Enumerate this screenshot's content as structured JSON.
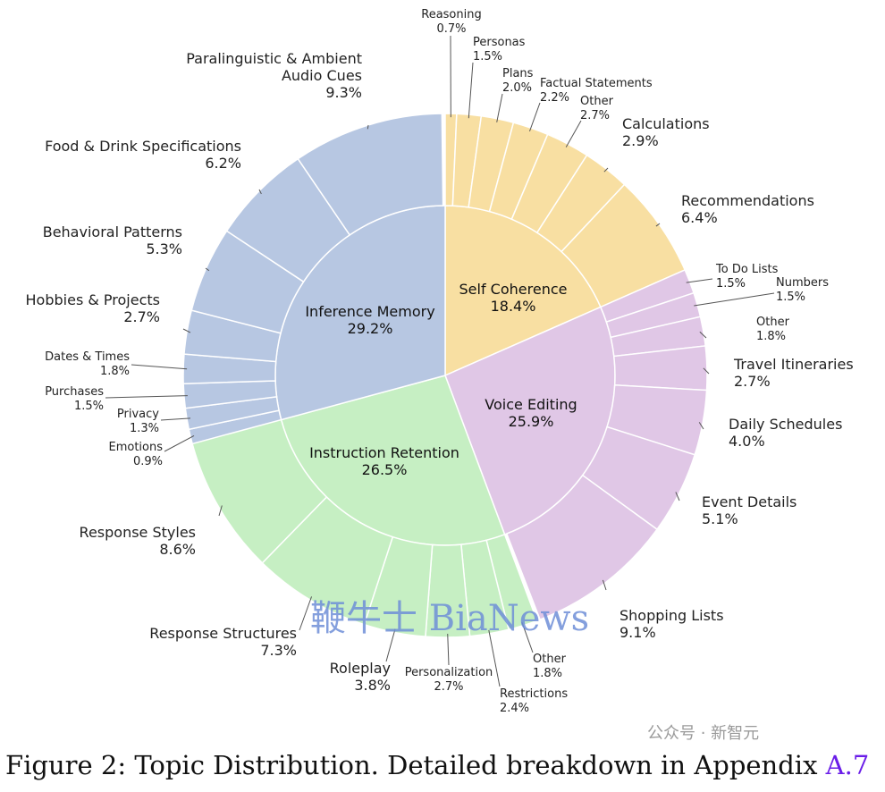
{
  "chart_data": {
    "type": "sunburst",
    "title": "",
    "unit": "%",
    "groups": [
      {
        "name": "Self Coherence",
        "value": 18.4,
        "color": "#f8dfa2",
        "children": [
          {
            "name": "Reasoning",
            "value": 0.7
          },
          {
            "name": "Personas",
            "value": 1.5
          },
          {
            "name": "Plans",
            "value": 2.0
          },
          {
            "name": "Factual Statements",
            "value": 2.2
          },
          {
            "name": "Other",
            "value": 2.7
          },
          {
            "name": "Calculations",
            "value": 2.9
          },
          {
            "name": "Recommendations",
            "value": 6.4
          }
        ]
      },
      {
        "name": "Voice Editing",
        "value": 25.9,
        "color": "#e0c7e6",
        "children": [
          {
            "name": "To Do Lists",
            "value": 1.5
          },
          {
            "name": "Numbers",
            "value": 1.5
          },
          {
            "name": "Other",
            "value": 1.8
          },
          {
            "name": "Travel Itineraries",
            "value": 2.7
          },
          {
            "name": "Daily Schedules",
            "value": 4.0
          },
          {
            "name": "Event Details",
            "value": 5.1
          },
          {
            "name": "Shopping Lists",
            "value": 9.1
          }
        ]
      },
      {
        "name": "Instruction Retention",
        "value": 26.5,
        "color": "#c6efc3",
        "children": [
          {
            "name": "Other",
            "value": 1.8
          },
          {
            "name": "Restrictions",
            "value": 2.4
          },
          {
            "name": "Personalization",
            "value": 2.7
          },
          {
            "name": "Roleplay",
            "value": 3.8
          },
          {
            "name": "Response Structures",
            "value": 7.3
          },
          {
            "name": "Response Styles",
            "value": 8.6
          }
        ]
      },
      {
        "name": "Inference Memory",
        "value": 29.2,
        "color": "#b7c7e2",
        "children": [
          {
            "name": "Emotions",
            "value": 0.9
          },
          {
            "name": "Privacy",
            "value": 1.3
          },
          {
            "name": "Purchases",
            "value": 1.5
          },
          {
            "name": "Dates & Times",
            "value": 1.8
          },
          {
            "name": "Hobbies & Projects",
            "value": 2.7
          },
          {
            "name": "Behavioral Patterns",
            "value": 5.3
          },
          {
            "name": "Food & Drink Specifications",
            "value": 6.2
          },
          {
            "name": "Paralinguistic & Ambient Audio Cues",
            "value": 9.3
          }
        ]
      }
    ]
  },
  "caption": {
    "text": "Figure 2: Topic Distribution. Detailed breakdown in Appendix ",
    "ref": "A.7"
  },
  "watermarks": {
    "top": "鞭牛士 BiaNews",
    "bottom": "公众号 · 新智元"
  }
}
